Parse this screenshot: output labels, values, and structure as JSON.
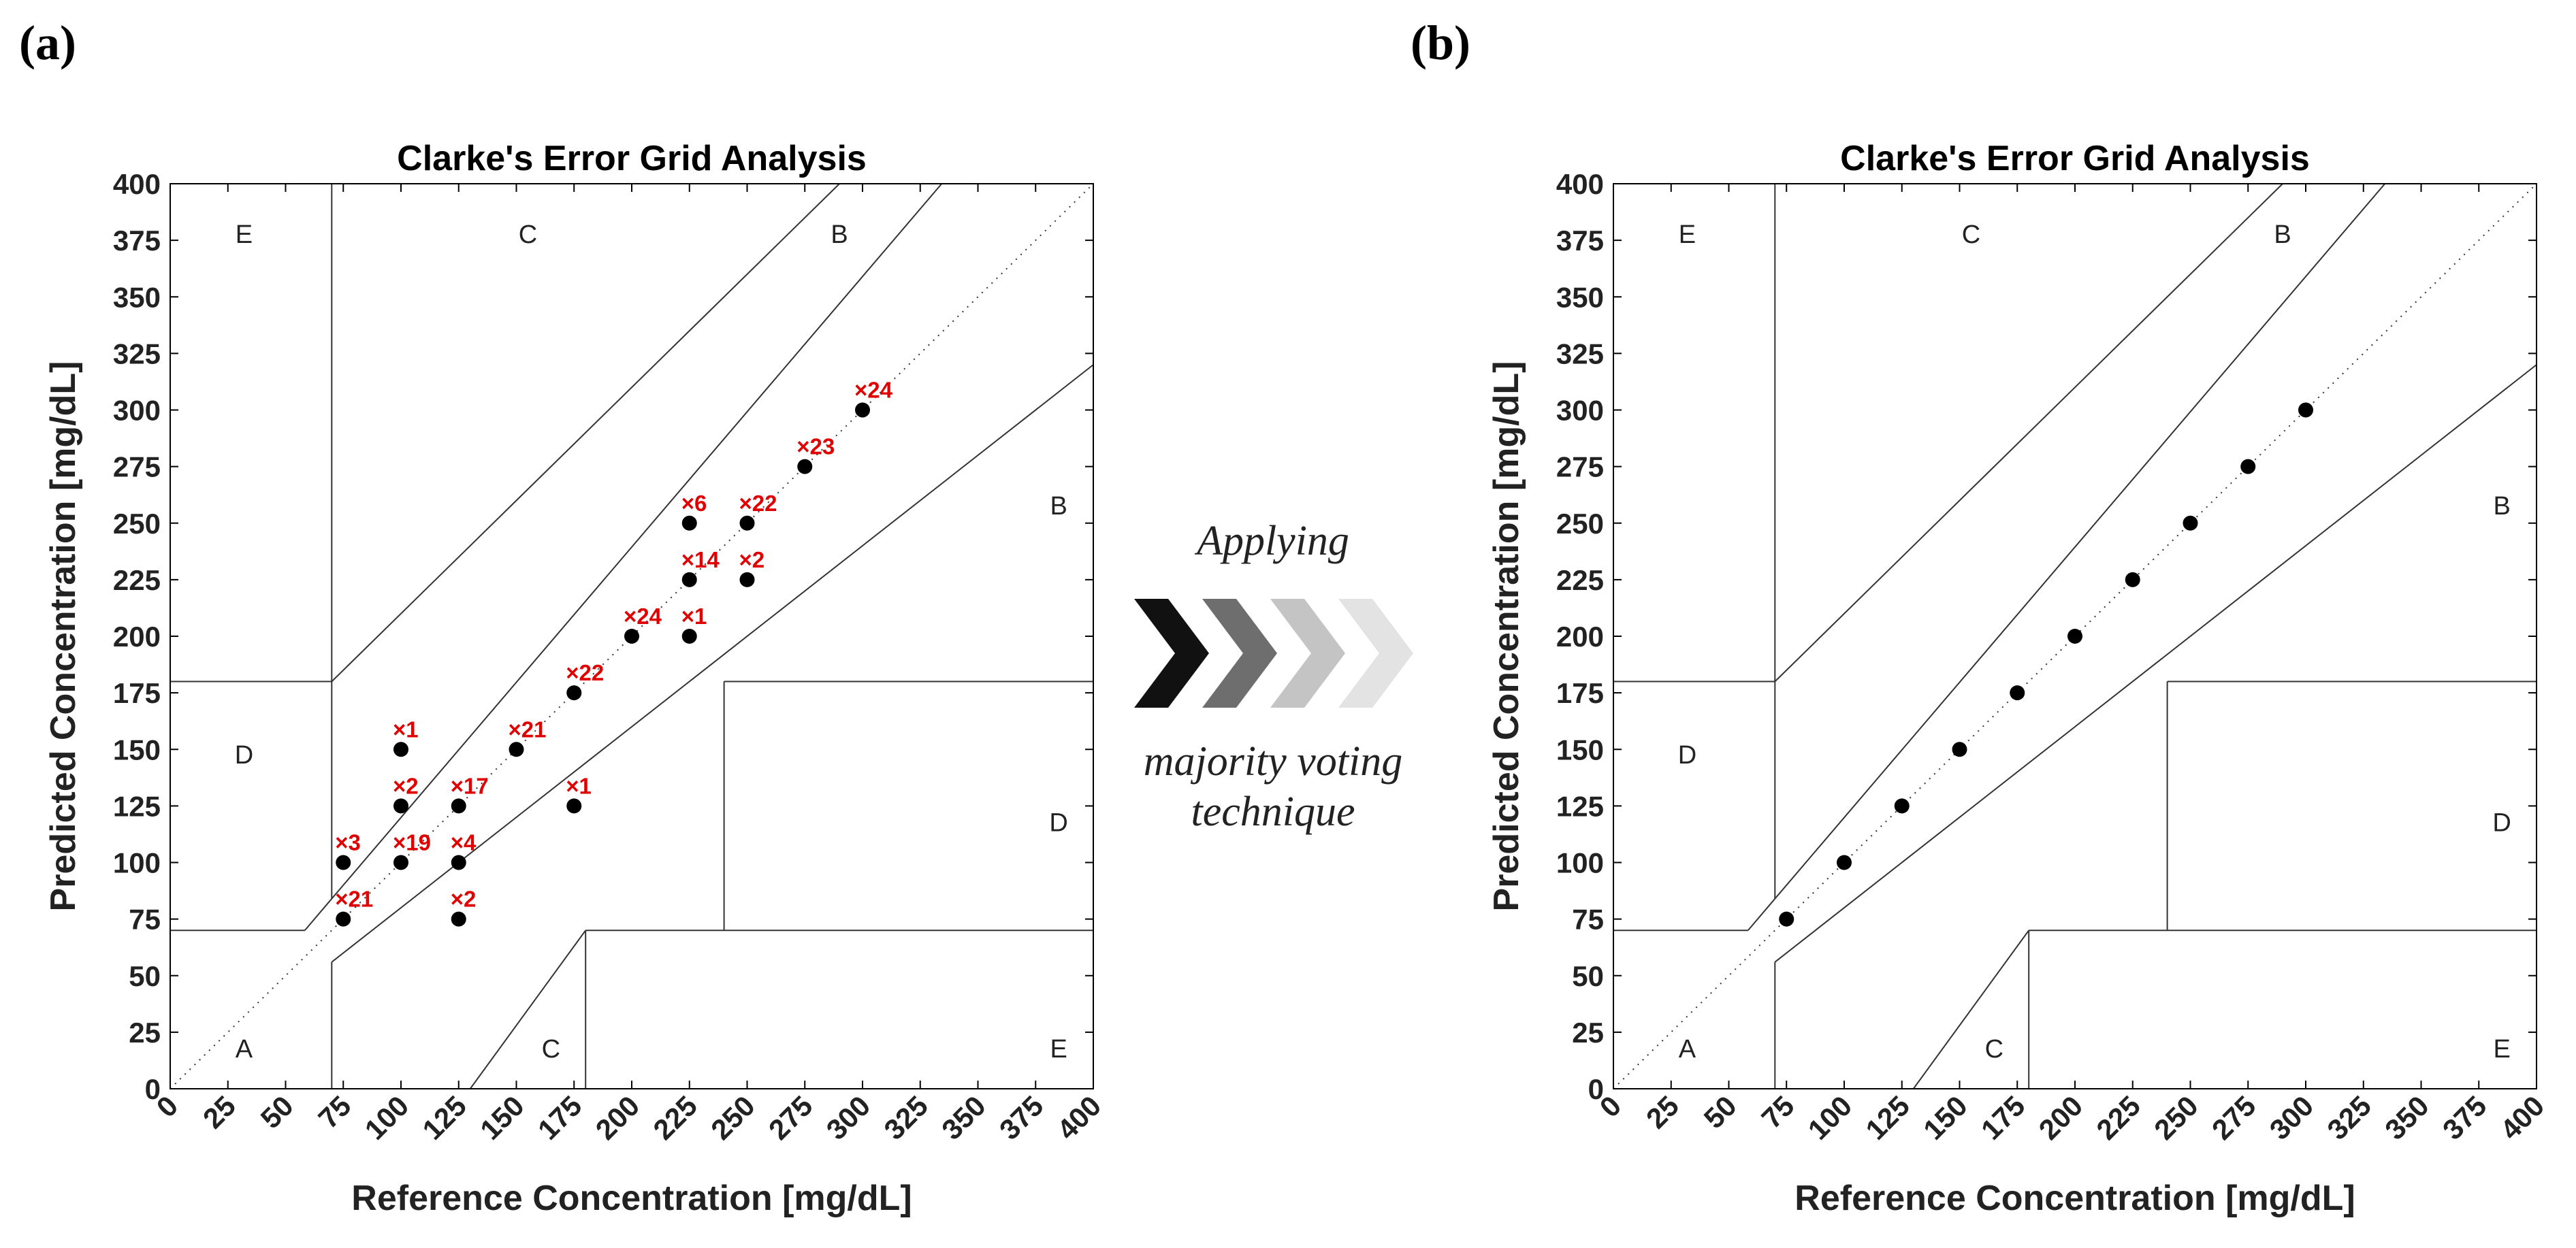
{
  "panels": [
    {
      "label": "(a)",
      "chart_data": {
        "type": "scatter",
        "title": "Clarke's Error Grid Analysis",
        "xlabel": "Reference Concentration [mg/dL]",
        "ylabel": "Predicted Concentration [mg/dL]",
        "xlim": [
          0,
          400
        ],
        "ylim": [
          0,
          400
        ],
        "xticks": [
          0,
          25,
          50,
          75,
          100,
          125,
          150,
          175,
          200,
          225,
          250,
          275,
          300,
          325,
          350,
          375,
          400
        ],
        "yticks": [
          0,
          25,
          50,
          75,
          100,
          125,
          150,
          175,
          200,
          225,
          250,
          275,
          300,
          325,
          350,
          375,
          400
        ],
        "zone_labels": [
          "A",
          "B",
          "B",
          "C",
          "C",
          "D",
          "D",
          "E",
          "E"
        ],
        "points": [
          {
            "x": 75,
            "y": 75,
            "label": "×21"
          },
          {
            "x": 75,
            "y": 100,
            "label": "×3"
          },
          {
            "x": 100,
            "y": 100,
            "label": "×19"
          },
          {
            "x": 100,
            "y": 125,
            "label": "×2"
          },
          {
            "x": 100,
            "y": 150,
            "label": "×1"
          },
          {
            "x": 125,
            "y": 75,
            "label": "×2"
          },
          {
            "x": 125,
            "y": 100,
            "label": "×4"
          },
          {
            "x": 125,
            "y": 125,
            "label": "×17"
          },
          {
            "x": 150,
            "y": 150,
            "label": "×21"
          },
          {
            "x": 175,
            "y": 125,
            "label": "×1"
          },
          {
            "x": 175,
            "y": 175,
            "label": "×22"
          },
          {
            "x": 200,
            "y": 200,
            "label": "×24"
          },
          {
            "x": 225,
            "y": 200,
            "label": "×1"
          },
          {
            "x": 225,
            "y": 225,
            "label": "×14"
          },
          {
            "x": 225,
            "y": 250,
            "label": "×6"
          },
          {
            "x": 250,
            "y": 225,
            "label": "×2"
          },
          {
            "x": 250,
            "y": 250,
            "label": "×22"
          },
          {
            "x": 275,
            "y": 275,
            "label": "×23"
          },
          {
            "x": 300,
            "y": 300,
            "label": "×24"
          }
        ]
      }
    },
    {
      "label": "(b)",
      "chart_data": {
        "type": "scatter",
        "title": "Clarke's Error Grid Analysis",
        "xlabel": "Reference Concentration [mg/dL]",
        "ylabel": "Predicted Concentration [mg/dL]",
        "xlim": [
          0,
          400
        ],
        "ylim": [
          0,
          400
        ],
        "xticks": [
          0,
          25,
          50,
          75,
          100,
          125,
          150,
          175,
          200,
          225,
          250,
          275,
          300,
          325,
          350,
          375,
          400
        ],
        "yticks": [
          0,
          25,
          50,
          75,
          100,
          125,
          150,
          175,
          200,
          225,
          250,
          275,
          300,
          325,
          350,
          375,
          400
        ],
        "zone_labels": [
          "A",
          "B",
          "B",
          "C",
          "C",
          "D",
          "D",
          "E",
          "E"
        ],
        "points": [
          {
            "x": 75,
            "y": 75
          },
          {
            "x": 100,
            "y": 100
          },
          {
            "x": 125,
            "y": 125
          },
          {
            "x": 150,
            "y": 150
          },
          {
            "x": 175,
            "y": 175
          },
          {
            "x": 200,
            "y": 200
          },
          {
            "x": 225,
            "y": 225
          },
          {
            "x": 250,
            "y": 250
          },
          {
            "x": 275,
            "y": 275
          },
          {
            "x": 300,
            "y": 300
          }
        ]
      }
    }
  ],
  "arrow": {
    "top_text": "Applying",
    "bottom_line1": "majority voting",
    "bottom_line2": "technique",
    "colors": [
      "#111111",
      "#6e6e6e",
      "#c4c4c4",
      "#e3e3e3"
    ]
  }
}
